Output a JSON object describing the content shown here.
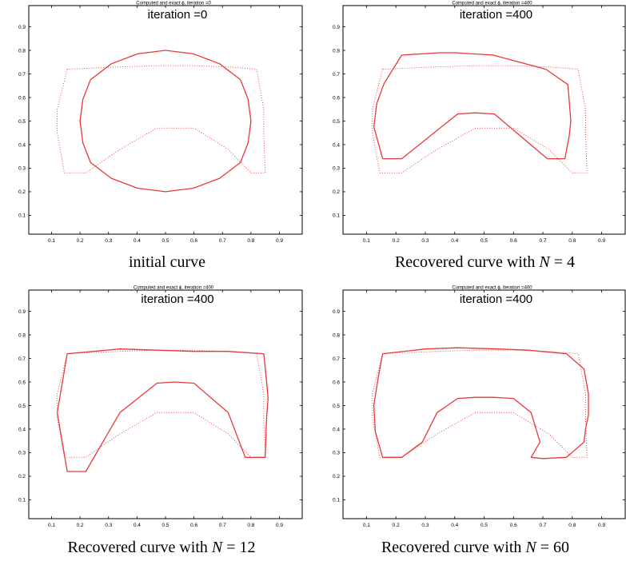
{
  "chart_data": [
    {
      "type": "line",
      "title": "Computed and exact ϕ, iteration =0",
      "annotation": "iteration =0",
      "caption": {
        "text": "initial curve",
        "var": "",
        "eq": "",
        "value": ""
      },
      "xlim": [
        0.02,
        0.98
      ],
      "ylim": [
        0.02,
        0.99
      ],
      "xticks": [
        "0.1",
        "0.2",
        "0.3",
        "0.4",
        "0.5",
        "0.6",
        "0.7",
        "0.8",
        "0.9"
      ],
      "yticks": [
        "0.1",
        "0.2",
        "0.3",
        "0.4",
        "0.5",
        "0.6",
        "0.7",
        "0.8",
        "0.9"
      ],
      "grid": false,
      "series": [
        {
          "style": "dotted",
          "color": "#e8393a",
          "x": [
            0.155,
            0.12,
            0.12,
            0.145,
            0.22,
            0.34,
            0.47,
            0.6,
            0.72,
            0.8,
            0.85,
            0.845,
            0.845,
            0.82,
            0.72,
            0.6,
            0.47,
            0.34,
            0.155
          ],
          "y": [
            0.72,
            0.55,
            0.45,
            0.28,
            0.28,
            0.38,
            0.47,
            0.47,
            0.38,
            0.28,
            0.28,
            0.45,
            0.55,
            0.72,
            0.73,
            0.735,
            0.735,
            0.73,
            0.72
          ]
        },
        {
          "style": "solid",
          "color": "#e8393a",
          "x": [
            0.5,
            0.598,
            0.69,
            0.763,
            0.79,
            0.8,
            0.79,
            0.763,
            0.69,
            0.598,
            0.5,
            0.402,
            0.31,
            0.237,
            0.21,
            0.2,
            0.21,
            0.237,
            0.31,
            0.402,
            0.5
          ],
          "y": [
            0.8,
            0.785,
            0.743,
            0.676,
            0.593,
            0.5,
            0.407,
            0.324,
            0.257,
            0.215,
            0.2,
            0.215,
            0.257,
            0.324,
            0.407,
            0.5,
            0.593,
            0.676,
            0.743,
            0.785,
            0.8
          ]
        }
      ]
    },
    {
      "type": "line",
      "title": "Computed and exact ϕ, iteration =400",
      "annotation": "iteration =400",
      "caption": {
        "text": "Recovered curve with ",
        "var": "N",
        "eq": " = ",
        "value": "4"
      },
      "xlim": [
        0.02,
        0.98
      ],
      "ylim": [
        0.02,
        0.99
      ],
      "xticks": [
        "0.1",
        "0.2",
        "0.3",
        "0.4",
        "0.5",
        "0.6",
        "0.7",
        "0.8",
        "0.9"
      ],
      "yticks": [
        "0.1",
        "0.2",
        "0.3",
        "0.4",
        "0.5",
        "0.6",
        "0.7",
        "0.8",
        "0.9"
      ],
      "grid": false,
      "series": [
        {
          "style": "dotted",
          "color": "#e8393a",
          "x": [
            0.155,
            0.12,
            0.12,
            0.145,
            0.22,
            0.34,
            0.47,
            0.6,
            0.72,
            0.8,
            0.85,
            0.845,
            0.845,
            0.82,
            0.72,
            0.6,
            0.47,
            0.34,
            0.155
          ],
          "y": [
            0.72,
            0.55,
            0.45,
            0.28,
            0.28,
            0.38,
            0.47,
            0.47,
            0.38,
            0.28,
            0.28,
            0.45,
            0.55,
            0.72,
            0.73,
            0.735,
            0.735,
            0.73,
            0.72
          ]
        },
        {
          "style": "solid",
          "color": "#e8393a",
          "x": [
            0.22,
            0.35,
            0.4,
            0.53,
            0.71,
            0.785,
            0.795,
            0.79,
            0.775,
            0.715,
            0.535,
            0.47,
            0.41,
            0.22,
            0.155,
            0.125,
            0.135,
            0.16,
            0.22
          ],
          "y": [
            0.78,
            0.79,
            0.79,
            0.78,
            0.72,
            0.655,
            0.5,
            0.44,
            0.34,
            0.34,
            0.53,
            0.535,
            0.53,
            0.34,
            0.34,
            0.475,
            0.575,
            0.66,
            0.78
          ]
        }
      ]
    },
    {
      "type": "line",
      "title": "Computed and exact ϕ, iteration =400",
      "annotation": "iteration =400",
      "caption": {
        "text": "Recovered curve with ",
        "var": "N",
        "eq": " = ",
        "value": "12"
      },
      "xlim": [
        0.02,
        0.98
      ],
      "ylim": [
        0.02,
        0.99
      ],
      "xticks": [
        "0.1",
        "0.2",
        "0.3",
        "0.4",
        "0.5",
        "0.6",
        "0.7",
        "0.8",
        "0.9"
      ],
      "yticks": [
        "0.1",
        "0.2",
        "0.3",
        "0.4",
        "0.5",
        "0.6",
        "0.7",
        "0.8",
        "0.9"
      ],
      "grid": false,
      "series": [
        {
          "style": "dotted",
          "color": "#e8393a",
          "x": [
            0.155,
            0.12,
            0.12,
            0.145,
            0.22,
            0.34,
            0.47,
            0.6,
            0.72,
            0.8,
            0.85,
            0.845,
            0.845,
            0.82,
            0.72,
            0.6,
            0.47,
            0.34,
            0.155
          ],
          "y": [
            0.72,
            0.55,
            0.45,
            0.28,
            0.28,
            0.38,
            0.47,
            0.47,
            0.38,
            0.28,
            0.28,
            0.45,
            0.55,
            0.72,
            0.73,
            0.735,
            0.735,
            0.73,
            0.72
          ]
        },
        {
          "style": "solid",
          "color": "#e8393a",
          "x": [
            0.155,
            0.34,
            0.47,
            0.6,
            0.72,
            0.845,
            0.855,
            0.86,
            0.855,
            0.85,
            0.78,
            0.72,
            0.6,
            0.53,
            0.47,
            0.34,
            0.22,
            0.155,
            0.12,
            0.155
          ],
          "y": [
            0.72,
            0.74,
            0.735,
            0.73,
            0.73,
            0.72,
            0.6,
            0.53,
            0.45,
            0.28,
            0.28,
            0.47,
            0.595,
            0.6,
            0.595,
            0.47,
            0.22,
            0.22,
            0.47,
            0.72
          ]
        }
      ]
    },
    {
      "type": "line",
      "title": "Computed and exact ϕ, iteration =400",
      "annotation": "iteration =400",
      "caption": {
        "text": "Recovered curve with ",
        "var": "N",
        "eq": " = ",
        "value": "60"
      },
      "xlim": [
        0.02,
        0.98
      ],
      "ylim": [
        0.02,
        0.99
      ],
      "xticks": [
        "0.1",
        "0.2",
        "0.3",
        "0.4",
        "0.5",
        "0.6",
        "0.7",
        "0.8",
        "0.9"
      ],
      "yticks": [
        "0.1",
        "0.2",
        "0.3",
        "0.4",
        "0.5",
        "0.6",
        "0.7",
        "0.8",
        "0.9"
      ],
      "grid": false,
      "series": [
        {
          "style": "dotted",
          "color": "#e8393a",
          "x": [
            0.155,
            0.12,
            0.12,
            0.145,
            0.22,
            0.34,
            0.47,
            0.6,
            0.72,
            0.8,
            0.85,
            0.845,
            0.845,
            0.82,
            0.72,
            0.6,
            0.47,
            0.34,
            0.155
          ],
          "y": [
            0.72,
            0.55,
            0.45,
            0.28,
            0.28,
            0.38,
            0.47,
            0.47,
            0.38,
            0.28,
            0.28,
            0.45,
            0.55,
            0.72,
            0.73,
            0.735,
            0.735,
            0.73,
            0.72
          ]
        },
        {
          "style": "solid",
          "color": "#e8393a",
          "x": [
            0.155,
            0.3,
            0.41,
            0.55,
            0.65,
            0.78,
            0.84,
            0.855,
            0.855,
            0.845,
            0.84,
            0.78,
            0.7,
            0.66,
            0.69,
            0.66,
            0.6,
            0.53,
            0.47,
            0.41,
            0.34,
            0.29,
            0.22,
            0.155,
            0.13,
            0.125,
            0.14,
            0.155
          ],
          "y": [
            0.72,
            0.74,
            0.745,
            0.74,
            0.735,
            0.72,
            0.655,
            0.55,
            0.46,
            0.4,
            0.345,
            0.28,
            0.275,
            0.28,
            0.345,
            0.47,
            0.53,
            0.535,
            0.535,
            0.53,
            0.47,
            0.345,
            0.28,
            0.28,
            0.39,
            0.5,
            0.62,
            0.72
          ]
        }
      ]
    }
  ]
}
